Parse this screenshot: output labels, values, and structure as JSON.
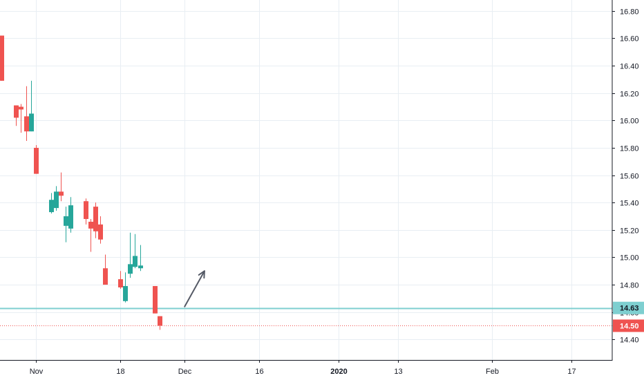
{
  "colors": {
    "up": "#26a69a",
    "down": "#ef5350",
    "grid": "#e8eef3",
    "axis": "#131722",
    "support_line": "#7ecfd0",
    "last_price_line": "#ef5350",
    "arrow": "#555a66"
  },
  "chart_data": {
    "type": "candlestick",
    "x_axis": {
      "labels": [
        {
          "text": "Nov",
          "date": "2019-11-01",
          "bold": false
        },
        {
          "text": "18",
          "date": "2019-11-18",
          "bold": false
        },
        {
          "text": "Dec",
          "date": "2019-12-01",
          "bold": false
        },
        {
          "text": "16",
          "date": "2019-12-16",
          "bold": false
        },
        {
          "text": "2020",
          "date": "2020-01-01",
          "bold": true
        },
        {
          "text": "13",
          "date": "2020-01-13",
          "bold": false
        },
        {
          "text": "Feb",
          "date": "2020-02-01",
          "bold": false
        },
        {
          "text": "17",
          "date": "2020-02-17",
          "bold": false
        }
      ]
    },
    "y_axis": {
      "ticks": [
        "14.40",
        "14.60",
        "14.80",
        "15.00",
        "15.20",
        "15.40",
        "15.60",
        "15.80",
        "16.00",
        "16.20",
        "16.40",
        "16.60",
        "16.80"
      ],
      "range": [
        14.25,
        16.88
      ]
    },
    "candles": [
      {
        "date": "2019-10-25",
        "open": 16.62,
        "high": 16.62,
        "low": 16.29,
        "close": 16.29
      },
      {
        "date": "2019-10-28",
        "open": 16.11,
        "high": 16.11,
        "low": 15.96,
        "close": 16.02
      },
      {
        "date": "2019-10-29",
        "open": 16.1,
        "high": 16.12,
        "low": 15.91,
        "close": 16.08
      },
      {
        "date": "2019-10-30",
        "open": 16.03,
        "high": 16.25,
        "low": 15.85,
        "close": 15.92
      },
      {
        "date": "2019-10-31",
        "open": 15.92,
        "high": 16.29,
        "low": 15.92,
        "close": 16.05
      },
      {
        "date": "2019-11-01",
        "open": 15.8,
        "high": 15.82,
        "low": 15.61,
        "close": 15.61
      },
      {
        "date": "2019-11-04",
        "open": 15.33,
        "high": 15.47,
        "low": 15.32,
        "close": 15.42
      },
      {
        "date": "2019-11-05",
        "open": 15.36,
        "high": 15.52,
        "low": 15.34,
        "close": 15.48
      },
      {
        "date": "2019-11-06",
        "open": 15.48,
        "high": 15.62,
        "low": 15.41,
        "close": 15.45
      },
      {
        "date": "2019-11-07",
        "open": 15.23,
        "high": 15.37,
        "low": 15.11,
        "close": 15.3
      },
      {
        "date": "2019-11-08",
        "open": 15.21,
        "high": 15.44,
        "low": 15.18,
        "close": 15.38
      },
      {
        "date": "2019-11-11",
        "open": 15.41,
        "high": 15.43,
        "low": 15.24,
        "close": 15.28
      },
      {
        "date": "2019-11-12",
        "open": 15.26,
        "high": 15.28,
        "low": 15.04,
        "close": 15.21
      },
      {
        "date": "2019-11-13",
        "open": 15.37,
        "high": 15.4,
        "low": 15.14,
        "close": 15.19
      },
      {
        "date": "2019-11-14",
        "open": 15.24,
        "high": 15.3,
        "low": 15.1,
        "close": 15.13
      },
      {
        "date": "2019-11-15",
        "open": 14.92,
        "high": 15.02,
        "low": 14.8,
        "close": 14.8
      },
      {
        "date": "2019-11-18",
        "open": 14.84,
        "high": 14.9,
        "low": 14.77,
        "close": 14.78
      },
      {
        "date": "2019-11-19",
        "open": 14.68,
        "high": 14.89,
        "low": 14.67,
        "close": 14.79
      },
      {
        "date": "2019-11-20",
        "open": 14.88,
        "high": 15.18,
        "low": 14.85,
        "close": 14.95
      },
      {
        "date": "2019-11-21",
        "open": 14.93,
        "high": 15.17,
        "low": 14.92,
        "close": 15.01
      },
      {
        "date": "2019-11-22",
        "open": 14.92,
        "high": 15.09,
        "low": 14.9,
        "close": 14.94
      },
      {
        "date": "2019-11-25",
        "open": 14.79,
        "high": 14.79,
        "low": 14.59,
        "close": 14.59
      },
      {
        "date": "2019-11-26",
        "open": 14.57,
        "high": 14.57,
        "low": 14.47,
        "close": 14.5
      }
    ],
    "annotations": {
      "support_line": {
        "price": 14.63,
        "label": "14.63"
      },
      "last_price": {
        "price": 14.5,
        "label": "14.50"
      },
      "arrow": {
        "from": {
          "date": "2019-12-01",
          "price": 14.64
        },
        "to": {
          "date": "2019-12-05",
          "price": 14.9
        }
      }
    }
  }
}
